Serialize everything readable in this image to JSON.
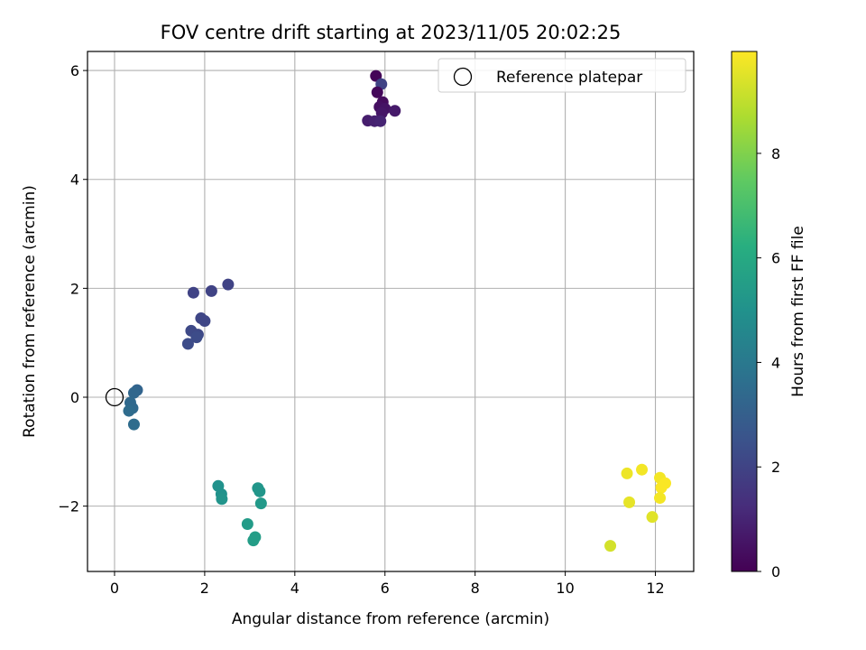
{
  "chart_data": {
    "type": "scatter",
    "title": "FOV centre drift starting at 2023/11/05 20:02:25",
    "xlabel": "Angular distance from reference (arcmin)",
    "ylabel": "Rotation from reference (arcmin)",
    "xlim": [
      -0.6,
      12.85
    ],
    "ylim": [
      -3.2,
      6.35
    ],
    "x_ticks": [
      0,
      2,
      4,
      6,
      8,
      10,
      12
    ],
    "y_ticks": [
      -2,
      0,
      2,
      4,
      6
    ],
    "grid": true,
    "legend": {
      "placement": "top-right",
      "entries": [
        "Reference platepar"
      ]
    },
    "reference_point": {
      "label": "Reference platepar",
      "x": 0,
      "y": 0
    },
    "colorbar": {
      "label": "Hours from first FF file",
      "colormap": "viridis",
      "range": [
        0,
        9.95
      ],
      "ticks": [
        0,
        2,
        4,
        6,
        8
      ]
    },
    "points": [
      {
        "x": 5.8,
        "y": 5.9,
        "c": 0.1
      },
      {
        "x": 5.92,
        "y": 5.75,
        "c": 2.0
      },
      {
        "x": 5.83,
        "y": 5.6,
        "c": 0.2
      },
      {
        "x": 5.95,
        "y": 5.42,
        "c": 0.3
      },
      {
        "x": 5.88,
        "y": 5.33,
        "c": 0.4
      },
      {
        "x": 6.0,
        "y": 5.3,
        "c": 0.5
      },
      {
        "x": 5.93,
        "y": 5.22,
        "c": 0.6
      },
      {
        "x": 6.22,
        "y": 5.26,
        "c": 0.7
      },
      {
        "x": 5.62,
        "y": 5.08,
        "c": 0.8
      },
      {
        "x": 5.77,
        "y": 5.07,
        "c": 0.9
      },
      {
        "x": 5.9,
        "y": 5.07,
        "c": 1.0
      },
      {
        "x": 1.75,
        "y": 1.92,
        "c": 2.0
      },
      {
        "x": 2.15,
        "y": 1.95,
        "c": 2.0
      },
      {
        "x": 2.52,
        "y": 2.07,
        "c": 2.0
      },
      {
        "x": 1.92,
        "y": 1.45,
        "c": 2.1
      },
      {
        "x": 2.0,
        "y": 1.4,
        "c": 2.1
      },
      {
        "x": 1.7,
        "y": 1.22,
        "c": 2.2
      },
      {
        "x": 1.85,
        "y": 1.15,
        "c": 2.2
      },
      {
        "x": 1.82,
        "y": 1.1,
        "c": 2.3
      },
      {
        "x": 1.63,
        "y": 0.98,
        "c": 2.3
      },
      {
        "x": 0.5,
        "y": 0.13,
        "c": 3.2
      },
      {
        "x": 0.43,
        "y": 0.08,
        "c": 3.3
      },
      {
        "x": 0.35,
        "y": -0.1,
        "c": 3.4
      },
      {
        "x": 0.4,
        "y": -0.2,
        "c": 3.4
      },
      {
        "x": 0.32,
        "y": -0.25,
        "c": 3.5
      },
      {
        "x": 0.43,
        "y": -0.5,
        "c": 3.5
      },
      {
        "x": 2.3,
        "y": -1.63,
        "c": 5.0
      },
      {
        "x": 2.37,
        "y": -1.78,
        "c": 5.0
      },
      {
        "x": 2.38,
        "y": -1.87,
        "c": 5.1
      },
      {
        "x": 3.18,
        "y": -1.67,
        "c": 5.2
      },
      {
        "x": 3.22,
        "y": -1.73,
        "c": 5.2
      },
      {
        "x": 3.25,
        "y": -1.95,
        "c": 5.3
      },
      {
        "x": 2.95,
        "y": -2.33,
        "c": 5.4
      },
      {
        "x": 3.12,
        "y": -2.57,
        "c": 5.5
      },
      {
        "x": 3.08,
        "y": -2.63,
        "c": 5.5
      },
      {
        "x": 11.7,
        "y": -1.33,
        "c": 9.8
      },
      {
        "x": 11.37,
        "y": -1.4,
        "c": 9.7
      },
      {
        "x": 12.1,
        "y": -1.48,
        "c": 9.8
      },
      {
        "x": 12.22,
        "y": -1.58,
        "c": 9.9
      },
      {
        "x": 12.13,
        "y": -1.66,
        "c": 9.9
      },
      {
        "x": 12.1,
        "y": -1.85,
        "c": 9.8
      },
      {
        "x": 11.42,
        "y": -1.93,
        "c": 9.6
      },
      {
        "x": 11.93,
        "y": -2.2,
        "c": 9.5
      },
      {
        "x": 11.0,
        "y": -2.73,
        "c": 9.3
      }
    ]
  }
}
